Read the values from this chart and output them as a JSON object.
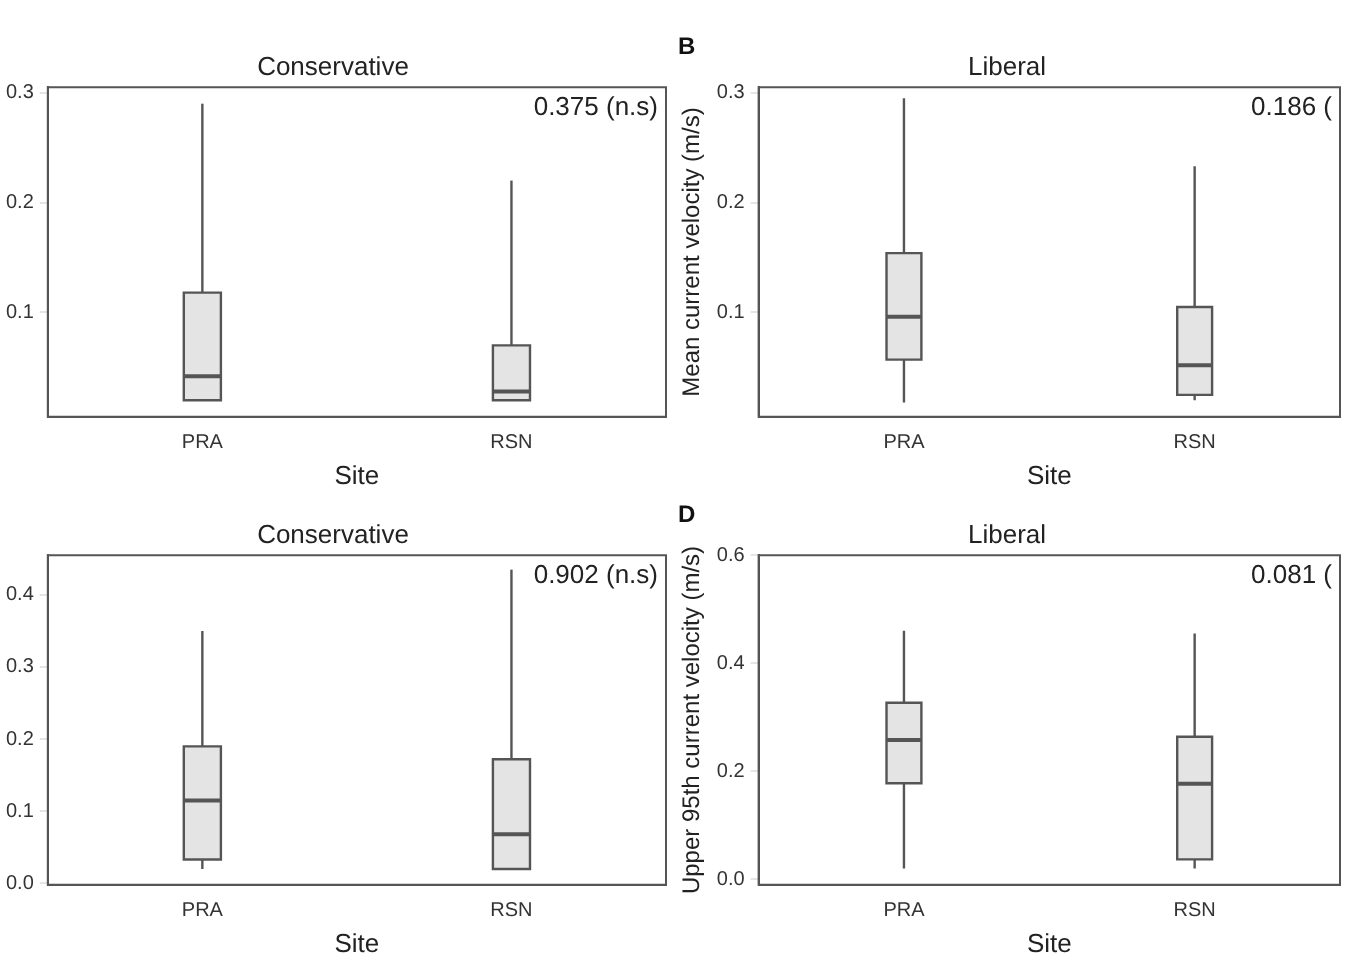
{
  "chart_data": [
    {
      "type": "box",
      "title": "Conservative",
      "xlabel": "Site",
      "categories": [
        "PRA",
        "RSN"
      ],
      "ylim": [
        0.005,
        0.305
      ],
      "yticks": [
        0.1,
        0.2,
        0.3
      ],
      "grid": false,
      "legend": false,
      "annotations": [
        "0.375 (n.s)"
      ],
      "boxes": [
        {
          "low": 0.02,
          "q1": 0.02,
          "median": 0.042,
          "q3": 0.118,
          "high": 0.29
        },
        {
          "low": 0.02,
          "q1": 0.02,
          "median": 0.028,
          "q3": 0.07,
          "high": 0.22
        }
      ]
    },
    {
      "type": "box",
      "title": "Liberal",
      "xlabel": "Site",
      "ylabel": "Mean current velocity (m/s)",
      "categories": [
        "PRA",
        "RSN"
      ],
      "ylim": [
        0.005,
        0.305
      ],
      "yticks": [
        0.1,
        0.2,
        0.3
      ],
      "grid": false,
      "legend": false,
      "annotations": [
        "B",
        "0.186 ("
      ],
      "boxes": [
        {
          "low": 0.018,
          "q1": 0.057,
          "median": 0.096,
          "q3": 0.154,
          "high": 0.295
        },
        {
          "low": 0.02,
          "q1": 0.025,
          "median": 0.052,
          "q3": 0.105,
          "high": 0.233
        }
      ]
    },
    {
      "type": "box",
      "title": "Conservative",
      "xlabel": "Site",
      "categories": [
        "PRA",
        "RSN"
      ],
      "ylim": [
        -0.002,
        0.455
      ],
      "yticks": [
        {
          "value": 0,
          "label": "0.0"
        },
        0.1,
        0.2,
        0.3,
        0.4
      ],
      "grid": false,
      "legend": false,
      "annotations": [
        "0.902 (n.s)"
      ],
      "boxes": [
        {
          "low": 0.02,
          "q1": 0.033,
          "median": 0.115,
          "q3": 0.19,
          "high": 0.35
        },
        {
          "low": 0.02,
          "q1": 0.02,
          "median": 0.068,
          "q3": 0.172,
          "high": 0.435
        }
      ]
    },
    {
      "type": "box",
      "title": "Liberal",
      "xlabel": "Site",
      "ylabel": "Upper 95th current velocity (m/s)",
      "categories": [
        "PRA",
        "RSN"
      ],
      "ylim": [
        -0.01,
        0.6
      ],
      "yticks": [
        {
          "value": 0,
          "label": "0.0"
        },
        0.2,
        0.4,
        0.6
      ],
      "grid": false,
      "legend": false,
      "annotations": [
        "D",
        "0.081 ("
      ],
      "boxes": [
        {
          "low": 0.02,
          "q1": 0.178,
          "median": 0.258,
          "q3": 0.327,
          "high": 0.46
        },
        {
          "low": 0.02,
          "q1": 0.037,
          "median": 0.177,
          "q3": 0.264,
          "high": 0.455
        }
      ]
    }
  ]
}
